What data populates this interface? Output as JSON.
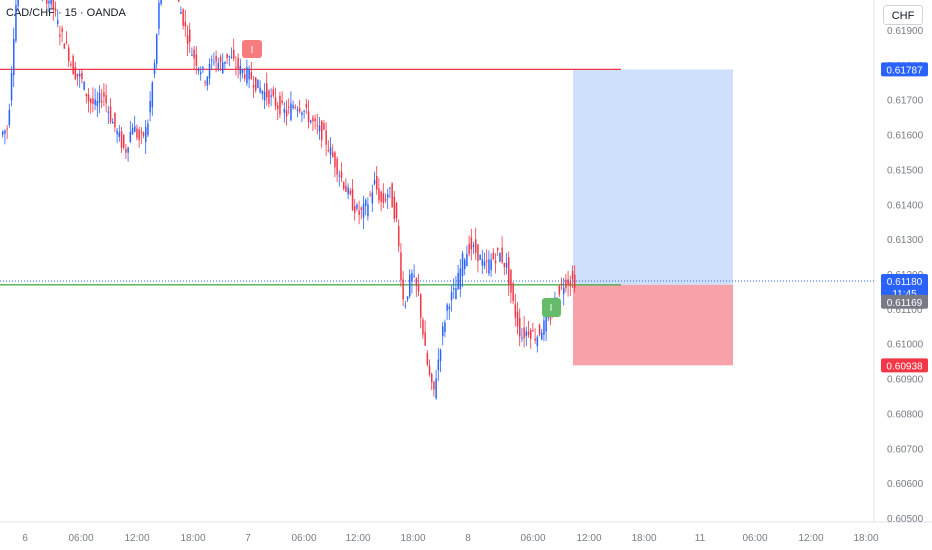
{
  "symbol": "CAD/CHF · 15 · OANDA",
  "currency_button": "CHF",
  "colors": {
    "up": "#2962ff",
    "down": "#f23645",
    "resistance": "#f23645",
    "support": "#4caf50",
    "profit_zone": "#cfe0fc",
    "loss_zone": "#f7a1a8",
    "price_tag": "#2962ff",
    "target_tag": "#2962ff",
    "stop_tag": "#f23645",
    "entry_tag": "#787b86"
  },
  "chart_data": {
    "type": "candlestick",
    "y_range": [
      0.6049,
      0.6198
    ],
    "y_ticks": [
      "0.61900",
      "0.61800",
      "0.61700",
      "0.61600",
      "0.61500",
      "0.61400",
      "0.61300",
      "0.61200",
      "0.61100",
      "0.61000",
      "0.60900",
      "0.60800",
      "0.60700",
      "0.60600",
      "0.60500"
    ],
    "x_ticks": [
      "6",
      "06:00",
      "12:00",
      "18:00",
      "7",
      "06:00",
      "12:00",
      "18:00",
      "8",
      "06:00",
      "12:00",
      "18:00",
      "11",
      "06:00",
      "12:00",
      "18:00"
    ],
    "price_path": [
      0.616,
      0.6162,
      0.6196,
      0.621,
      0.6215,
      0.6205,
      0.62,
      0.6198,
      0.619,
      0.6185,
      0.6178,
      0.6176,
      0.617,
      0.6168,
      0.6172,
      0.6165,
      0.616,
      0.6155,
      0.6163,
      0.6158,
      0.6162,
      0.618,
      0.6208,
      0.621,
      0.62,
      0.6192,
      0.6184,
      0.618,
      0.6176,
      0.6182,
      0.618,
      0.6183,
      0.618,
      0.6178,
      0.6177,
      0.6174,
      0.6172,
      0.617,
      0.6168,
      0.6166,
      0.6169,
      0.6168,
      0.6165,
      0.6162,
      0.616,
      0.6155,
      0.615,
      0.6145,
      0.614,
      0.6137,
      0.614,
      0.6146,
      0.614,
      0.6144,
      0.6135,
      0.611,
      0.612,
      0.6114,
      0.6096,
      0.6085,
      0.61,
      0.6112,
      0.6115,
      0.6124,
      0.6128,
      0.6126,
      0.6122,
      0.6124,
      0.6126,
      0.6122,
      0.611,
      0.6102,
      0.6104,
      0.6102,
      0.6105,
      0.6108,
      0.6115,
      0.6118,
      0.6118
    ],
    "annotations": {
      "resistance": 0.61787,
      "support": 0.61169,
      "entry": 0.61169,
      "target": 0.61787,
      "stop": 0.60938,
      "current": 0.6118
    },
    "price_labels": {
      "current": "0.61180",
      "countdown": "11:45",
      "target": "0.61787",
      "entry": "0.61169",
      "stop": "0.60938"
    },
    "markers": [
      {
        "label": "I",
        "type": "sell"
      },
      {
        "label": "I",
        "type": "buy"
      }
    ]
  }
}
